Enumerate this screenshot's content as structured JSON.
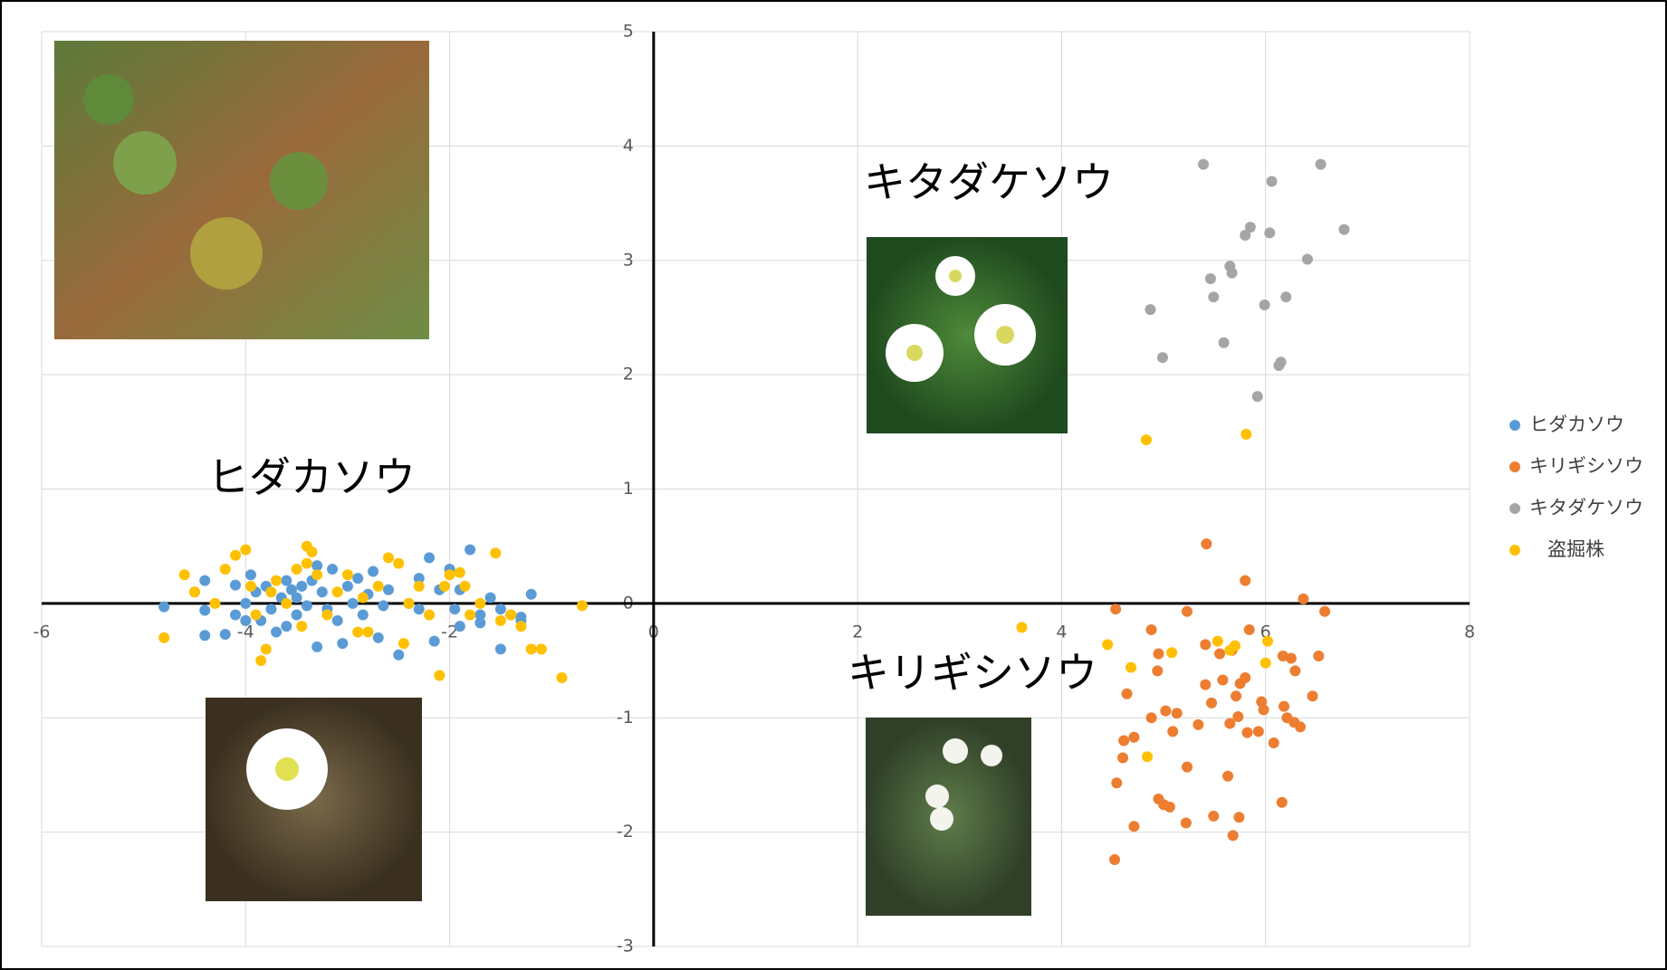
{
  "chart_data": {
    "type": "scatter",
    "xlim": [
      -6,
      8
    ],
    "ylim": [
      -3,
      5
    ],
    "xticks": [
      -6,
      -4,
      -2,
      0,
      2,
      4,
      6,
      8
    ],
    "yticks": [
      -3,
      -2,
      -1,
      0,
      1,
      2,
      3,
      4,
      5
    ],
    "grid": true,
    "legend": "right",
    "annotations": [
      "キタダケソウ",
      "ヒダカソウ",
      "キリギシソウ"
    ],
    "series": [
      {
        "name": "ヒダカソウ",
        "color": "#5b9bd5",
        "x": [
          -4.8,
          -4.5,
          -4.4,
          -4.4,
          -4.4,
          -4.2,
          -4.1,
          -4.1,
          -4.0,
          -4.0,
          -3.95,
          -3.9,
          -3.85,
          -3.8,
          -3.75,
          -3.7,
          -3.65,
          -3.6,
          -3.6,
          -3.55,
          -3.5,
          -3.5,
          -3.45,
          -3.4,
          -3.35,
          -3.3,
          -3.3,
          -3.25,
          -3.2,
          -3.15,
          -3.1,
          -3.05,
          -3.0,
          -2.95,
          -2.9,
          -2.85,
          -2.8,
          -2.75,
          -2.7,
          -2.65,
          -2.6,
          -2.5,
          -2.4,
          -2.3,
          -2.3,
          -2.2,
          -2.15,
          -2.1,
          -2.0,
          -1.95,
          -1.9,
          -1.8,
          -1.7,
          -1.6,
          -1.5,
          -1.5,
          -1.4,
          -1.3,
          -1.3,
          -1.2,
          -1.7,
          -1.9
        ],
        "values": [
          -0.03,
          0.1,
          0.2,
          -0.06,
          -0.28,
          -0.27,
          0.16,
          -0.1,
          0.0,
          -0.15,
          0.25,
          0.1,
          -0.15,
          0.15,
          -0.05,
          -0.25,
          0.05,
          -0.2,
          0.2,
          0.12,
          -0.1,
          0.05,
          0.15,
          -0.02,
          0.2,
          0.33,
          -0.38,
          0.1,
          -0.05,
          0.3,
          -0.15,
          -0.35,
          0.15,
          0.0,
          0.22,
          -0.1,
          0.08,
          0.28,
          -0.3,
          -0.02,
          0.12,
          -0.45,
          0.0,
          0.22,
          -0.05,
          0.4,
          -0.33,
          0.12,
          0.3,
          -0.05,
          0.12,
          0.47,
          -0.17,
          0.05,
          -0.4,
          -0.05,
          -0.1,
          -0.12,
          -0.15,
          0.08,
          -0.1,
          -0.2
        ]
      },
      {
        "name": "キリギシソウ",
        "color": "#ed7d31",
        "x": [
          5.42,
          5.8,
          6.37,
          4.53,
          6.58,
          5.23,
          4.88,
          5.84,
          5.41,
          5.55,
          5.67,
          6.17,
          6.25,
          6.52,
          4.95,
          5.8,
          5.75,
          6.29,
          4.94,
          5.41,
          5.58,
          4.64,
          5.47,
          5.96,
          5.71,
          6.18,
          6.46,
          5.02,
          5.13,
          4.88,
          5.98,
          6.21,
          5.73,
          6.28,
          5.34,
          5.65,
          6.34,
          5.09,
          5.82,
          5.93,
          4.71,
          4.61,
          6.08,
          4.6,
          5.23,
          5.63,
          4.54,
          4.95,
          5.0,
          5.06,
          6.16,
          5.49,
          5.74,
          5.22,
          4.71,
          5.68,
          4.52
        ],
        "values": [
          0.52,
          0.2,
          0.04,
          -0.05,
          -0.07,
          -0.07,
          -0.23,
          -0.23,
          -0.36,
          -0.44,
          -0.41,
          -0.46,
          -0.48,
          -0.46,
          -0.44,
          -0.65,
          -0.7,
          -0.59,
          -0.59,
          -0.71,
          -0.67,
          -0.79,
          -0.87,
          -0.86,
          -0.81,
          -0.9,
          -0.81,
          -0.94,
          -0.96,
          -1.0,
          -0.93,
          -1.0,
          -0.99,
          -1.04,
          -1.06,
          -1.05,
          -1.08,
          -1.12,
          -1.13,
          -1.12,
          -1.17,
          -1.2,
          -1.22,
          -1.35,
          -1.43,
          -1.51,
          -1.57,
          -1.71,
          -1.76,
          -1.78,
          -1.74,
          -1.86,
          -1.87,
          -1.92,
          -1.95,
          -2.03,
          -2.24
        ]
      },
      {
        "name": "キタダケソウ",
        "color": "#a5a5a5",
        "x": [
          5.39,
          6.54,
          6.06,
          6.77,
          5.85,
          5.8,
          6.04,
          6.41,
          5.65,
          5.67,
          5.46,
          5.49,
          6.2,
          4.87,
          5.99,
          5.59,
          4.99,
          6.15,
          6.13,
          5.92
        ],
        "values": [
          3.84,
          3.84,
          3.69,
          3.27,
          3.29,
          3.22,
          3.24,
          3.01,
          2.95,
          2.89,
          2.84,
          2.68,
          2.68,
          2.57,
          2.61,
          2.28,
          2.15,
          2.11,
          2.08,
          1.81
        ]
      },
      {
        "name": "盗掘株",
        "color": "#ffc000",
        "legend_text_color": "#ff0000",
        "x": [
          4.83,
          5.81,
          3.61,
          4.45,
          5.53,
          5.08,
          5.65,
          5.7,
          6.02,
          4.68,
          6.0,
          4.84,
          -4.8,
          -4.6,
          -4.5,
          -4.3,
          -4.2,
          -4.1,
          -4.0,
          -3.95,
          -3.9,
          -3.85,
          -3.8,
          -3.75,
          -3.7,
          -3.6,
          -3.5,
          -3.45,
          -3.4,
          -3.4,
          -3.35,
          -3.3,
          -3.2,
          -3.1,
          -3.0,
          -2.9,
          -2.85,
          -2.8,
          -2.7,
          -2.6,
          -2.5,
          -2.45,
          -2.4,
          -2.3,
          -2.2,
          -2.1,
          -2.05,
          -2.0,
          -1.9,
          -1.85,
          -1.8,
          -1.7,
          -1.55,
          -1.5,
          -1.4,
          -1.3,
          -1.2,
          -1.1,
          -0.9,
          -0.7
        ],
        "values": [
          1.43,
          1.48,
          -0.21,
          -0.36,
          -0.33,
          -0.43,
          -0.41,
          -0.37,
          -0.33,
          -0.56,
          -0.52,
          -1.34,
          -0.3,
          0.25,
          0.1,
          0.0,
          0.3,
          0.42,
          0.47,
          0.15,
          -0.1,
          -0.5,
          -0.4,
          0.1,
          0.2,
          0.0,
          0.3,
          -0.2,
          0.5,
          0.35,
          0.45,
          0.25,
          -0.1,
          0.1,
          0.25,
          -0.25,
          0.05,
          -0.25,
          0.15,
          0.4,
          0.35,
          -0.35,
          0.0,
          0.15,
          -0.1,
          -0.63,
          0.15,
          0.25,
          0.27,
          0.15,
          -0.1,
          0.0,
          0.44,
          -0.15,
          -0.1,
          -0.2,
          -0.4,
          -0.4,
          -0.65,
          -0.02
        ]
      }
    ]
  }
}
